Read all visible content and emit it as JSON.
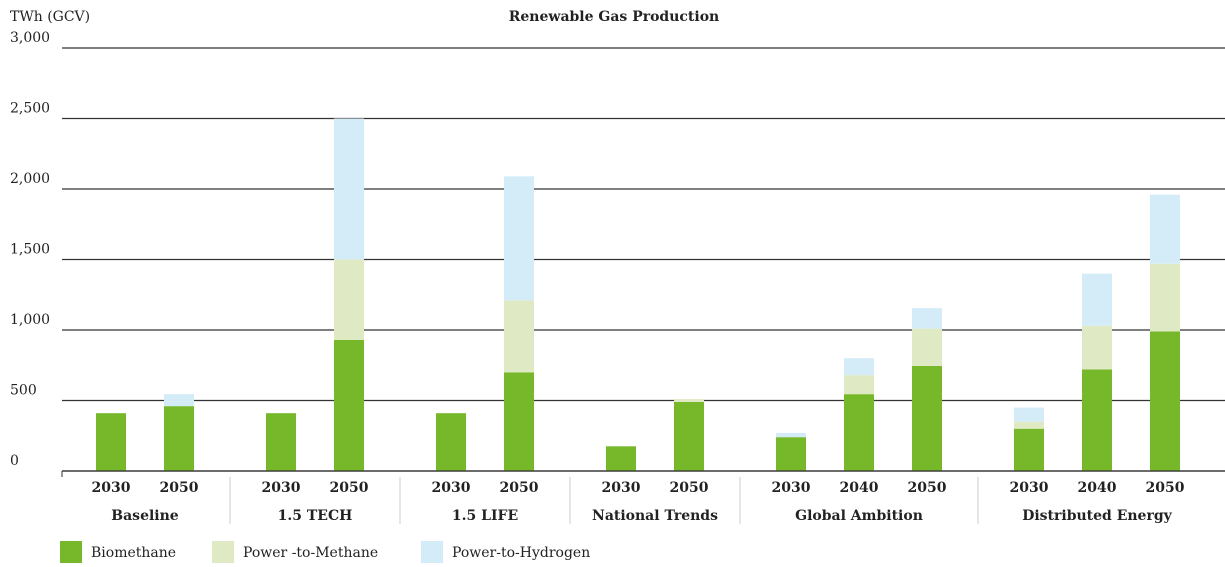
{
  "chart_data": {
    "type": "bar",
    "stacked": true,
    "title": "Renewable Gas Production",
    "y_label": "TWh (GCV)",
    "groups": [
      {
        "name": "Baseline",
        "categories": [
          "2030",
          "2050"
        ]
      },
      {
        "name": "1.5 TECH",
        "categories": [
          "2030",
          "2050"
        ]
      },
      {
        "name": "1.5 LIFE",
        "categories": [
          "2030",
          "2050"
        ]
      },
      {
        "name": "National Trends",
        "categories": [
          "2030",
          "2050"
        ]
      },
      {
        "name": "Global Ambition",
        "categories": [
          "2030",
          "2040",
          "2050"
        ]
      },
      {
        "name": "Distributed Energy",
        "categories": [
          "2030",
          "2040",
          "2050"
        ]
      }
    ],
    "series": [
      {
        "name": "Biomethane",
        "color": "#76b82a",
        "values": [
          410,
          460,
          410,
          930,
          410,
          700,
          175,
          490,
          240,
          545,
          745,
          300,
          720,
          990
        ]
      },
      {
        "name": "Power -to-Methane",
        "color": "#dfeac4",
        "values": [
          0,
          0,
          0,
          570,
          0,
          510,
          0,
          20,
          0,
          135,
          265,
          50,
          310,
          480
        ]
      },
      {
        "name": "Power-to-Hydrogen",
        "color": "#d4ecf8",
        "values": [
          0,
          85,
          0,
          1000,
          0,
          880,
          0,
          0,
          30,
          120,
          145,
          100,
          370,
          490
        ]
      }
    ],
    "ylim": [
      0,
      3000
    ],
    "yticks": [
      0,
      500,
      {
        "value": 1000,
        "label": "1,000"
      },
      {
        "value": 1500,
        "label": "1,500"
      },
      {
        "value": 2000,
        "label": "2,000"
      },
      {
        "value": 2500,
        "label": "2,500"
      },
      {
        "value": 3000,
        "label": "3,000"
      }
    ],
    "grid": true,
    "legend": "bottom-left"
  }
}
